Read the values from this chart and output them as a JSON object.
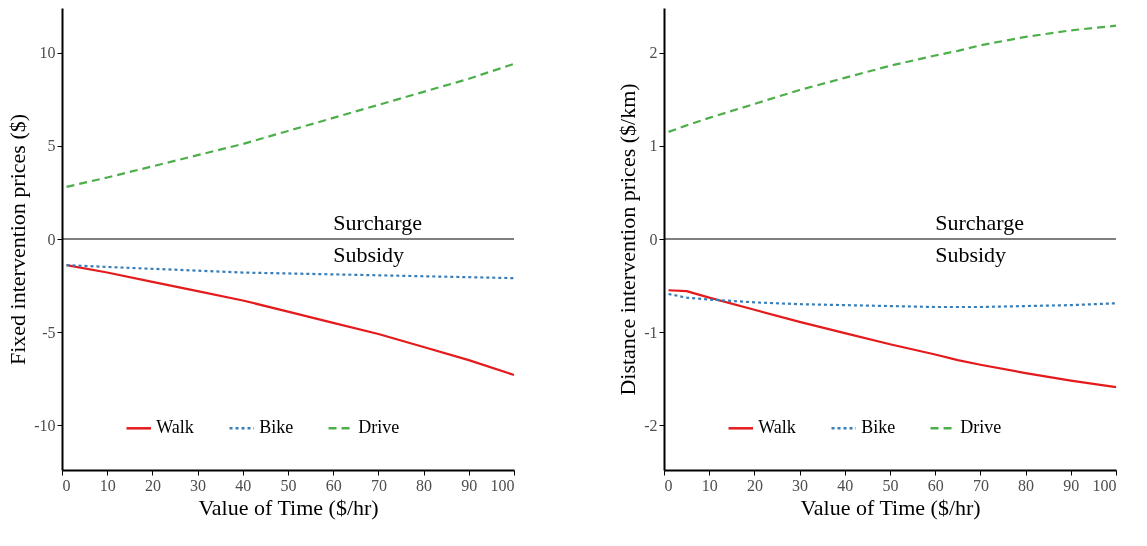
{
  "chart_data": [
    {
      "type": "line",
      "xlabel": "Value of Time ($/hr)",
      "ylabel": "Fixed intervention prices ($)",
      "xlim": [
        0,
        100
      ],
      "xticks": [
        0,
        10,
        20,
        30,
        40,
        50,
        60,
        70,
        80,
        90,
        100
      ],
      "ylim": [
        -12.4,
        12.4
      ],
      "yticks": [
        -10,
        -5,
        0,
        5,
        10
      ],
      "x": [
        1,
        10,
        20,
        30,
        40,
        50,
        60,
        70,
        80,
        90,
        100
      ],
      "series": [
        {
          "name": "Walk",
          "color": "#e41a1c",
          "line_style": "solid",
          "values": [
            -1.4,
            -1.8,
            -2.3,
            -2.8,
            -3.3,
            -3.9,
            -4.5,
            -5.1,
            -5.8,
            -6.5,
            -7.3
          ]
        },
        {
          "name": "Bike",
          "color": "#377eb8",
          "line_style": "dotted",
          "values": [
            -1.4,
            -1.5,
            -1.6,
            -1.7,
            -1.8,
            -1.85,
            -1.9,
            -1.95,
            -2.0,
            -2.05,
            -2.1
          ]
        },
        {
          "name": "Drive",
          "color": "#4daf4a",
          "line_style": "dashed",
          "values": [
            2.8,
            3.3,
            3.9,
            4.5,
            5.1,
            5.8,
            6.5,
            7.2,
            7.9,
            8.6,
            9.4
          ]
        }
      ],
      "ref_lines": [
        {
          "axis": "y",
          "value": 0,
          "color": "#000000"
        }
      ],
      "annotations": [
        "Surcharge",
        "Subsidy"
      ],
      "legend": "bottom",
      "grid": false
    },
    {
      "type": "line",
      "xlabel": "Value of Time ($/hr)",
      "ylabel": "Distance intervention prices ($/km)",
      "xlim": [
        0,
        100
      ],
      "xticks": [
        0,
        10,
        20,
        30,
        40,
        50,
        60,
        70,
        80,
        90,
        100
      ],
      "ylim": [
        -2.48,
        2.48
      ],
      "yticks": [
        -2,
        -1,
        0,
        1,
        2
      ],
      "x": [
        1,
        5,
        10,
        20,
        30,
        40,
        50,
        60,
        65,
        70,
        80,
        90,
        100
      ],
      "series": [
        {
          "name": "Walk",
          "color": "#e41a1c",
          "line_style": "solid",
          "values": [
            -0.55,
            -0.56,
            -0.63,
            -0.76,
            -0.89,
            -1.01,
            -1.13,
            -1.24,
            -1.3,
            -1.35,
            -1.44,
            -1.52,
            -1.59
          ]
        },
        {
          "name": "Bike",
          "color": "#377eb8",
          "line_style": "dotted",
          "values": [
            -0.59,
            -0.63,
            -0.65,
            -0.68,
            -0.7,
            -0.71,
            -0.72,
            -0.73,
            -0.73,
            -0.73,
            -0.72,
            -0.71,
            -0.69
          ]
        },
        {
          "name": "Drive",
          "color": "#4daf4a",
          "line_style": "dashed",
          "values": [
            1.15,
            1.22,
            1.3,
            1.45,
            1.6,
            1.73,
            1.86,
            1.97,
            2.02,
            2.08,
            2.17,
            2.24,
            2.29
          ]
        }
      ],
      "ref_lines": [
        {
          "axis": "y",
          "value": 0,
          "color": "#000000"
        }
      ],
      "annotations": [
        "Surcharge",
        "Subsidy"
      ],
      "legend": "bottom",
      "grid": false
    }
  ]
}
